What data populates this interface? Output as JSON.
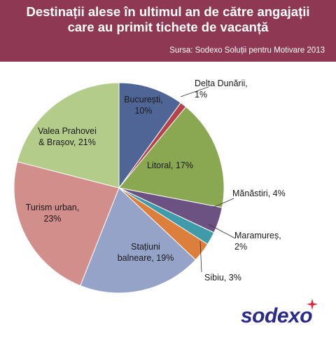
{
  "header": {
    "title_line1": "Destinații alese în ultimul an de către angajații",
    "title_line2": "care au primit tichete de vacanță",
    "source": "Sursa: Sodexo Soluții pentru Motivare 2013"
  },
  "logo": {
    "text": "sodexo"
  },
  "colors": {
    "header_bg": "#8e3854",
    "logo_text": "#2a2a8a",
    "logo_star": "#e0243a"
  },
  "chart_data": {
    "type": "pie",
    "title": "Destinații alese în ultimul an de către angajații care au primit tichete de vacanță",
    "start": "12 o'clock",
    "direction": "clockwise",
    "slices": [
      {
        "label_lines": [
          "București,",
          "10%"
        ],
        "category": "București",
        "value": 10,
        "color": "#4f6596"
      },
      {
        "label_lines": [
          "Delta Dunării,",
          "1%"
        ],
        "category": "Delta Dunării",
        "value": 1,
        "color": "#b6434a"
      },
      {
        "label_lines": [
          "Litoral, 17%"
        ],
        "category": "Litoral",
        "value": 17,
        "color": "#8aa852"
      },
      {
        "label_lines": [
          "Mănăstiri, 4%"
        ],
        "category": "Mănăstiri",
        "value": 4,
        "color": "#6c5283"
      },
      {
        "label_lines": [
          "Maramureș,",
          "2%"
        ],
        "category": "Maramureș",
        "value": 2,
        "color": "#3f9aaa"
      },
      {
        "label_lines": [
          "Sibiu, 3%"
        ],
        "category": "Sibiu",
        "value": 3,
        "color": "#dc7e3c"
      },
      {
        "label_lines": [
          "Stațiuni",
          "balneare, 19%"
        ],
        "category": "Stațiuni balneare",
        "value": 19,
        "color": "#95a3c8"
      },
      {
        "label_lines": [
          "Turism urban,",
          "23%"
        ],
        "category": "Turism urban",
        "value": 23,
        "color": "#d28e8a"
      },
      {
        "label_lines": [
          "Valea Prahovei",
          "& Brașov, 21%"
        ],
        "category": "Valea Prahovei & Brașov",
        "value": 21,
        "color": "#b3cc8a"
      }
    ]
  }
}
